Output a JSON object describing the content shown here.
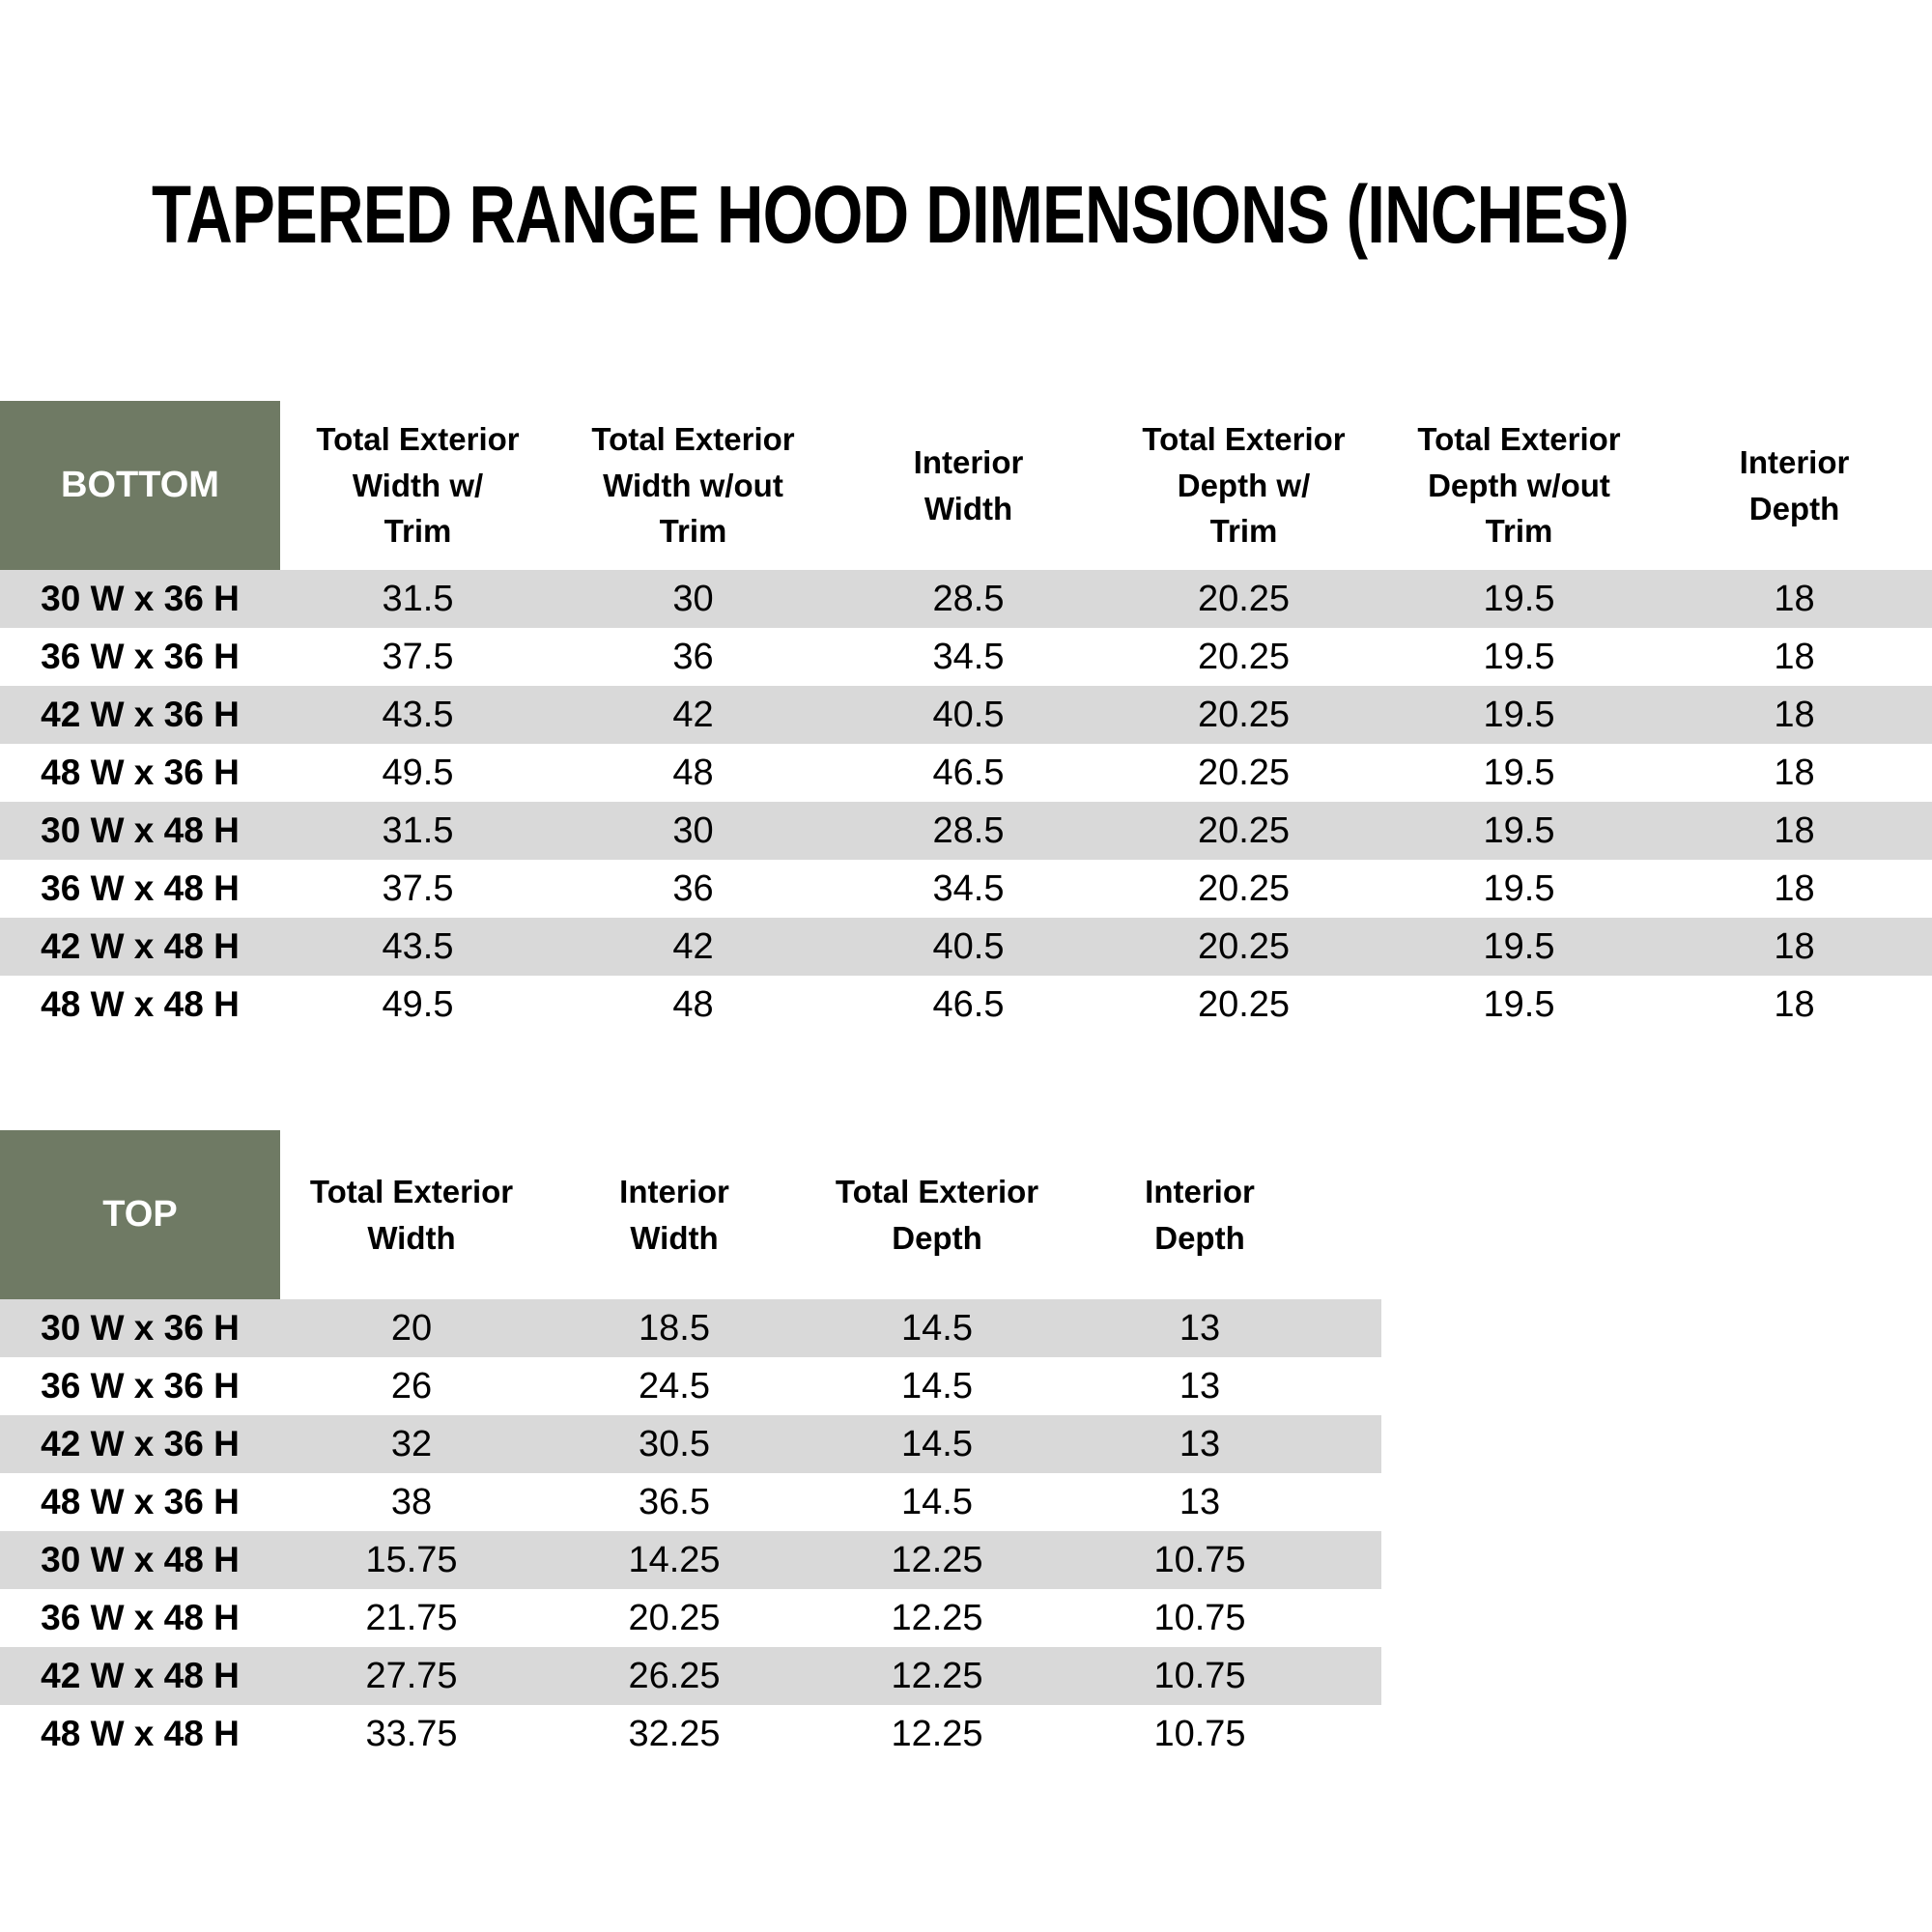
{
  "title": "TAPERED RANGE HOOD DIMENSIONS (INCHES)",
  "colors": {
    "header_green": "#6F7A64",
    "stripe_gray": "#D9D9D9",
    "text_black": "#000000",
    "background": "#FFFFFF"
  },
  "bottom_table": {
    "corner_label": "BOTTOM",
    "columns": [
      "Total Exterior\nWidth w/\nTrim",
      "Total Exterior\nWidth w/out\nTrim",
      "Interior\nWidth",
      "Total Exterior\nDepth w/\nTrim",
      "Total Exterior\nDepth w/out\nTrim",
      "Interior\nDepth"
    ],
    "rows": [
      {
        "label": "30 W x 36 H",
        "values": [
          "31.5",
          "30",
          "28.5",
          "20.25",
          "19.5",
          "18"
        ]
      },
      {
        "label": "36 W x 36 H",
        "values": [
          "37.5",
          "36",
          "34.5",
          "20.25",
          "19.5",
          "18"
        ]
      },
      {
        "label": "42 W x 36 H",
        "values": [
          "43.5",
          "42",
          "40.5",
          "20.25",
          "19.5",
          "18"
        ]
      },
      {
        "label": "48 W x 36 H",
        "values": [
          "49.5",
          "48",
          "46.5",
          "20.25",
          "19.5",
          "18"
        ]
      },
      {
        "label": "30 W x 48 H",
        "values": [
          "31.5",
          "30",
          "28.5",
          "20.25",
          "19.5",
          "18"
        ]
      },
      {
        "label": "36 W x 48 H",
        "values": [
          "37.5",
          "36",
          "34.5",
          "20.25",
          "19.5",
          "18"
        ]
      },
      {
        "label": "42 W x 48 H",
        "values": [
          "43.5",
          "42",
          "40.5",
          "20.25",
          "19.5",
          "18"
        ]
      },
      {
        "label": "48 W x 48 H",
        "values": [
          "49.5",
          "48",
          "46.5",
          "20.25",
          "19.5",
          "18"
        ]
      }
    ]
  },
  "top_table": {
    "corner_label": "TOP",
    "columns": [
      "Total Exterior\nWidth",
      "Interior\nWidth",
      "Total Exterior\nDepth",
      "Interior\nDepth"
    ],
    "rows": [
      {
        "label": "30 W x 36 H",
        "values": [
          "20",
          "18.5",
          "14.5",
          "13"
        ]
      },
      {
        "label": "36 W x 36 H",
        "values": [
          "26",
          "24.5",
          "14.5",
          "13"
        ]
      },
      {
        "label": "42 W x 36 H",
        "values": [
          "32",
          "30.5",
          "14.5",
          "13"
        ]
      },
      {
        "label": "48 W x 36 H",
        "values": [
          "38",
          "36.5",
          "14.5",
          "13"
        ]
      },
      {
        "label": "30 W x 48 H",
        "values": [
          "15.75",
          "14.25",
          "12.25",
          "10.75"
        ]
      },
      {
        "label": "36 W x 48 H",
        "values": [
          "21.75",
          "20.25",
          "12.25",
          "10.75"
        ]
      },
      {
        "label": "42 W x 48 H",
        "values": [
          "27.75",
          "26.25",
          "12.25",
          "10.75"
        ]
      },
      {
        "label": "48 W x 48 H",
        "values": [
          "33.75",
          "32.25",
          "12.25",
          "10.75"
        ]
      }
    ]
  }
}
